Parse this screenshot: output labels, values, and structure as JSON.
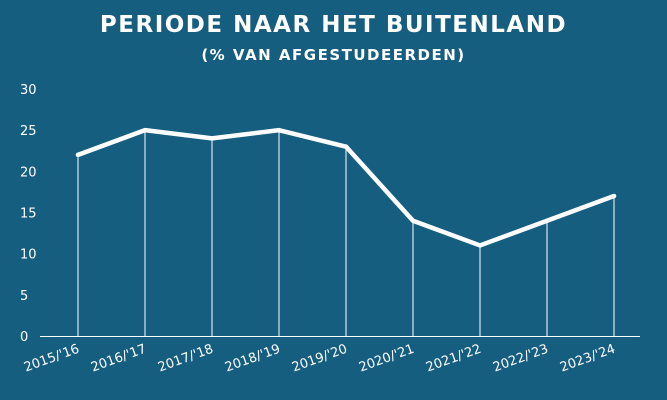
{
  "title": "PERIODE NAAR HET BUITENLAND",
  "subtitle": "(% VAN AFGESTUDEERDEN)",
  "colors": {
    "background": "#165e80",
    "line": "#ffffff",
    "text": "#ffffff"
  },
  "chart_data": {
    "type": "line",
    "title": "PERIODE NAAR HET BUITENLAND",
    "subtitle": "(% VAN AFGESTUDEERDEN)",
    "categories": [
      "2015/'16",
      "2016/'17",
      "2017/'18",
      "2018/'19",
      "2019/'20",
      "2020/'21",
      "2021/'22",
      "2022/'23",
      "2023/'24"
    ],
    "series": [
      {
        "values": [
          22,
          25,
          24,
          25,
          23,
          14,
          11,
          14,
          17
        ]
      }
    ],
    "ylim": [
      0,
      30
    ],
    "yticks": [
      0,
      5,
      10,
      15,
      20,
      25,
      30
    ],
    "grid": false,
    "drop_lines": true,
    "legend": "none"
  }
}
